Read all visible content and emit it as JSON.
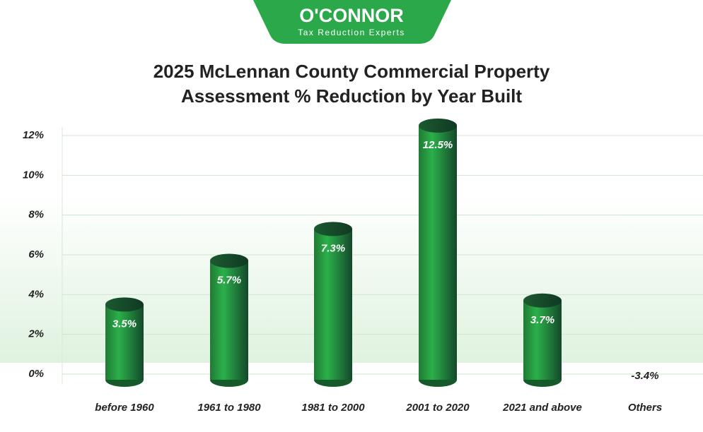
{
  "brand": {
    "name": "O'CONNOR",
    "tagline": "Tax Reduction Experts"
  },
  "chart_data": {
    "type": "bar",
    "title": [
      "2025 McLennan County Commercial Property",
      "Assessment % Reduction by Year Built"
    ],
    "categories": [
      "before 1960",
      "1961 to 1980",
      "1981 to 2000",
      "2001 to 2020",
      "2021 and above",
      "Others"
    ],
    "values": [
      3.5,
      5.7,
      7.3,
      12.5,
      3.7,
      -3.4
    ],
    "value_labels": [
      "3.5%",
      "5.7%",
      "7.3%",
      "12.5%",
      "3.7%",
      "-3.4%"
    ],
    "color": "#1e9b3c",
    "ylim": [
      0,
      12
    ],
    "yticks": [
      {
        "value": 0,
        "label": "0%"
      },
      {
        "value": 2,
        "label": "2%"
      },
      {
        "value": 4,
        "label": "4%"
      },
      {
        "value": 6,
        "label": "6%"
      },
      {
        "value": 8,
        "label": "8%"
      },
      {
        "value": 10,
        "label": "10%"
      },
      {
        "value": 12,
        "label": "12%"
      }
    ],
    "grid": true
  }
}
